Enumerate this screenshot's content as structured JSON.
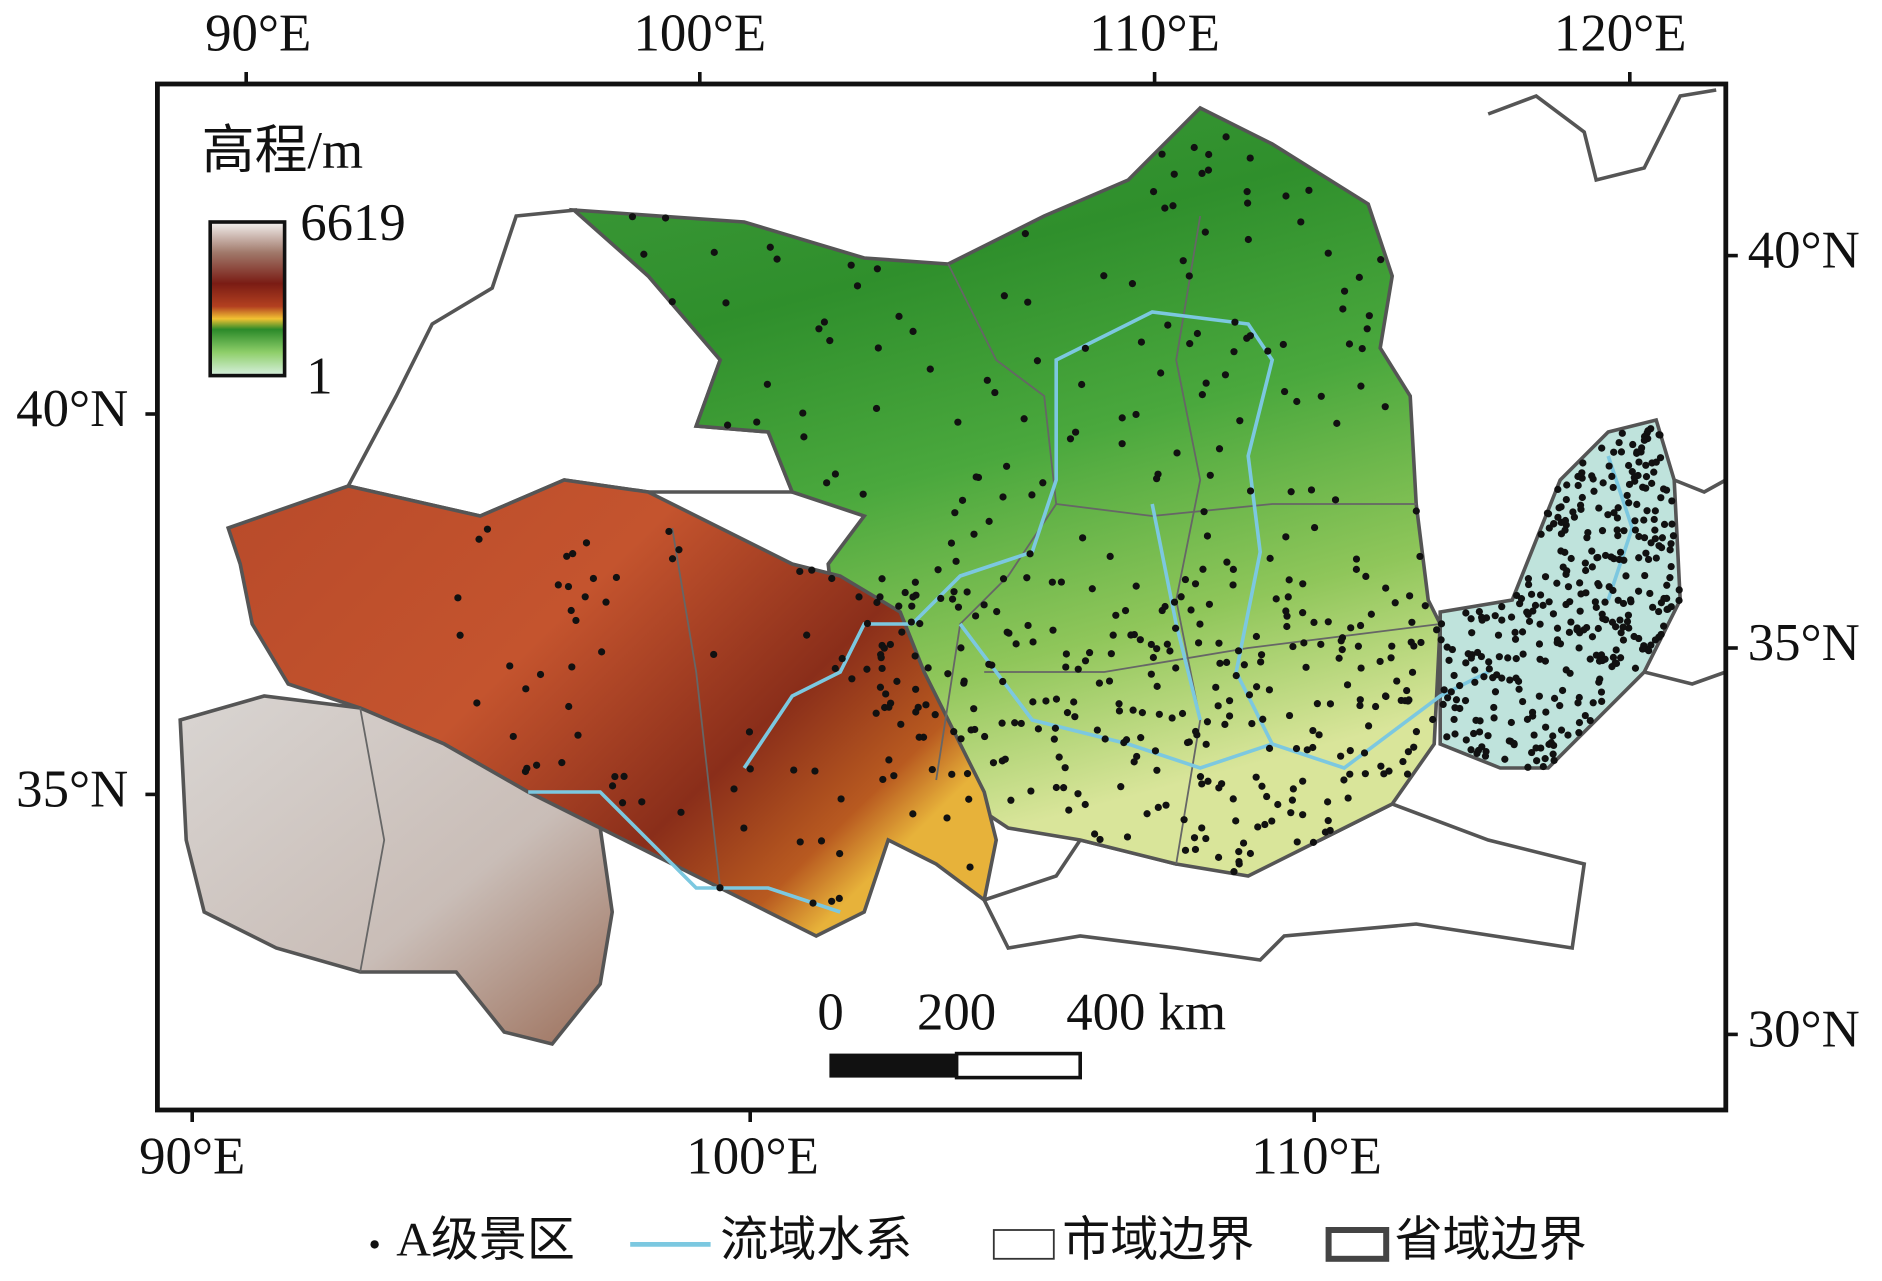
{
  "map": {
    "legend_title": "高程/m",
    "elevation_max": "6619",
    "elevation_min": "1",
    "top_ticks": [
      "90°E",
      "100°E",
      "110°E",
      "120°E"
    ],
    "bottom_ticks": [
      "90°E",
      "100°E",
      "110°E"
    ],
    "left_ticks": [
      "40°N",
      "35°N"
    ],
    "right_ticks": [
      "40°N",
      "35°N",
      "30°N"
    ],
    "scale_bar": [
      "0",
      "200",
      "400 km"
    ],
    "legend": [
      "A级景区",
      "流域水系",
      "市域边界",
      "省域边界"
    ]
  }
}
